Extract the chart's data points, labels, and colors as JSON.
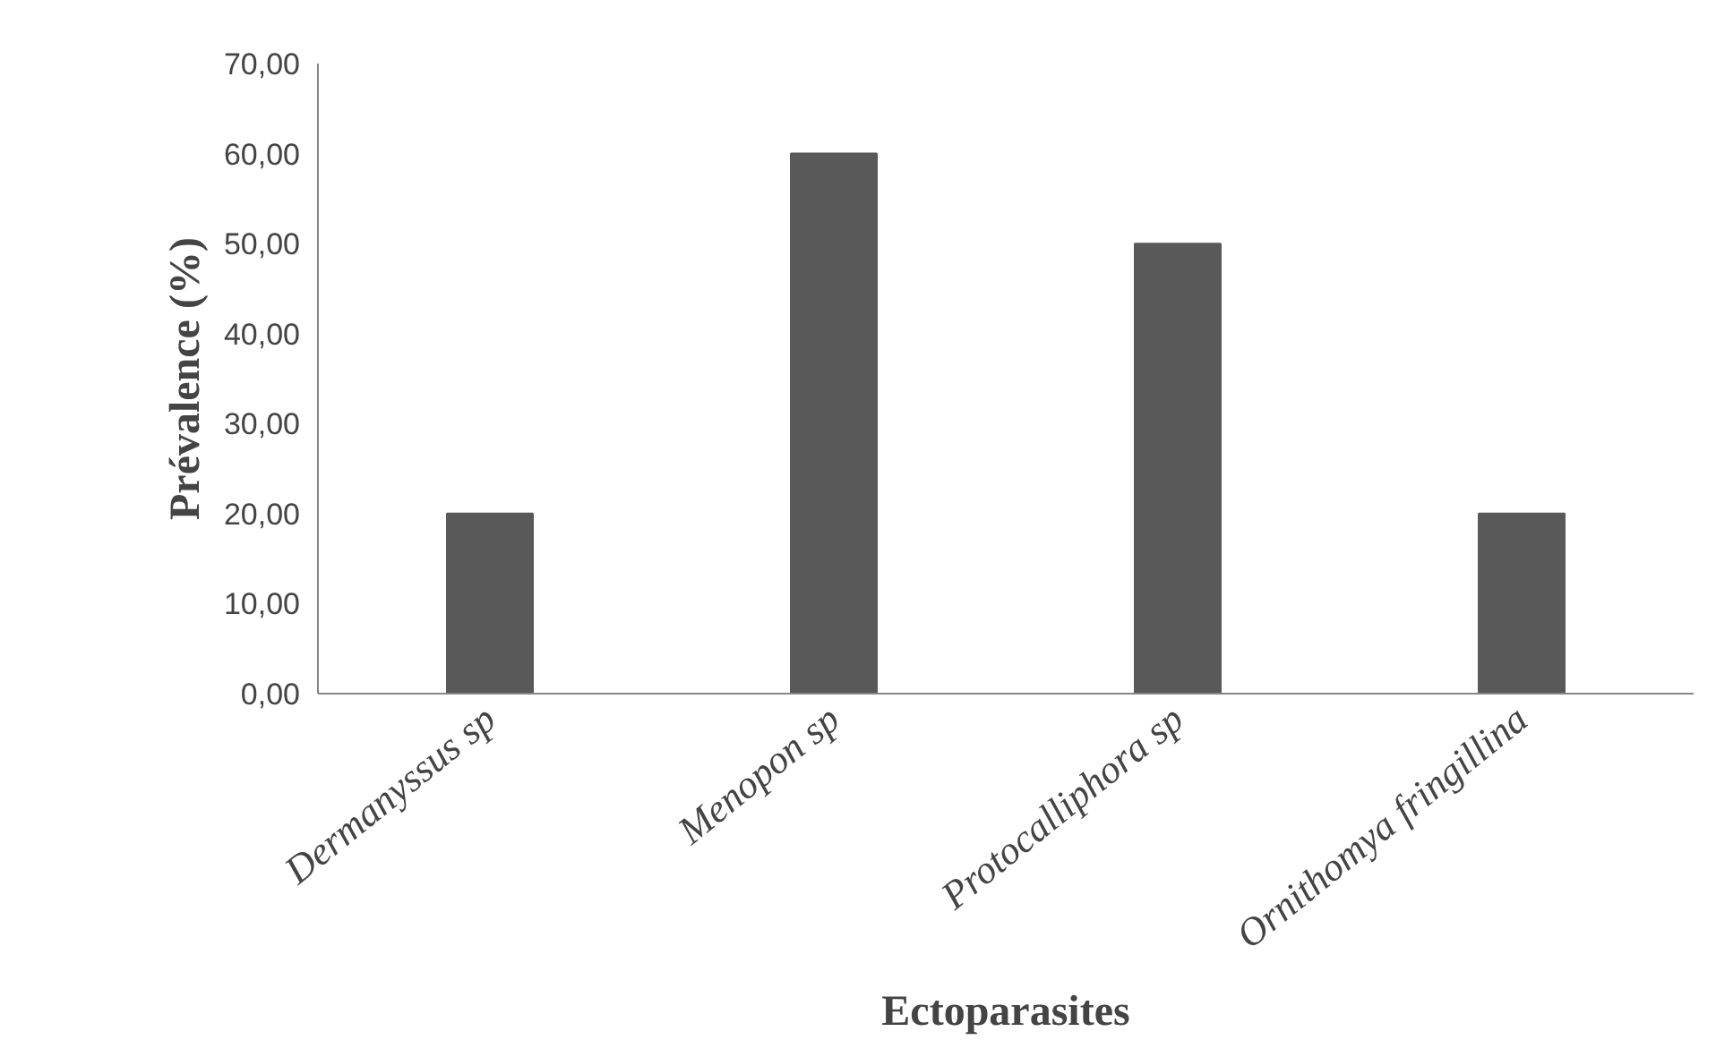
{
  "chart_data": {
    "type": "bar",
    "xlabel": "Ectoparasites",
    "ylabel": "Prévalence (%)",
    "categories": [
      "Dermanyssus sp",
      "Menopon sp",
      "Protocalliphora sp",
      "Ornithomya fringillina"
    ],
    "values": [
      20,
      60,
      50,
      20
    ],
    "color": "#595959",
    "ylim": [
      0,
      70
    ],
    "yticks": [
      {
        "value": 0,
        "label": "0,00"
      },
      {
        "value": 10,
        "label": "10,00"
      },
      {
        "value": 20,
        "label": "20,00"
      },
      {
        "value": 30,
        "label": "30,00"
      },
      {
        "value": 40,
        "label": "40,00"
      },
      {
        "value": 50,
        "label": "50,00"
      },
      {
        "value": 60,
        "label": "60,00"
      },
      {
        "value": 70,
        "label": "70,00"
      }
    ],
    "grid": false
  }
}
